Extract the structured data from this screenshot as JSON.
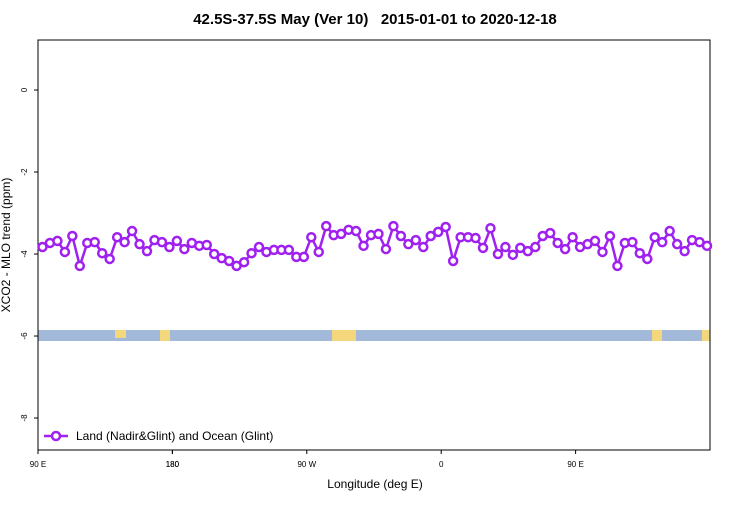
{
  "chart_data": {
    "type": "line",
    "title": "42.5S-37.5S May (Ver 10)   2015-01-01 to 2020-12-18",
    "x_label": "Longitude (deg E)",
    "y_label": "XCO2 - MLO trend (ppm)",
    "xlim": [
      90,
      540
    ],
    "xticks": [
      {
        "value": 90,
        "label": "90 E"
      },
      180,
      {
        "value": 270,
        "label": "90 W"
      },
      {
        "value": 360,
        "label": "0"
      },
      {
        "value": 450,
        "label": "90 E"
      },
      180
    ],
    "ylim": [
      -8.78,
      1.22
    ],
    "yticks": [
      0,
      -2,
      -4,
      -6,
      -8
    ],
    "legend": "bottom-left",
    "series": [
      {
        "name": "Land (Nadir&Glint) and Ocean (Glint)",
        "color": "#a020f0",
        "x": [
          93,
          98,
          103,
          108,
          113,
          118,
          123,
          128,
          133,
          138,
          143,
          148,
          153,
          158,
          163,
          168,
          173,
          178,
          183,
          188,
          193,
          198,
          203,
          208,
          213,
          218,
          223,
          228,
          233,
          238,
          243,
          248,
          253,
          258,
          263,
          268,
          273,
          278,
          283,
          288,
          293,
          298,
          303,
          308,
          313,
          318,
          323,
          328,
          333,
          338,
          343,
          348,
          353,
          358,
          363,
          368,
          373,
          378,
          383,
          388,
          393,
          398,
          403,
          408,
          413,
          418,
          423,
          428,
          433,
          438,
          443,
          448,
          453,
          458,
          463,
          468,
          473,
          478,
          483,
          488,
          493,
          498,
          503,
          508,
          513,
          518,
          523,
          528,
          533,
          538
        ],
        "values": [
          -3.83,
          -3.73,
          -3.68,
          -3.95,
          -3.56,
          -4.29,
          -3.73,
          -3.71,
          -3.98,
          -4.12,
          -3.59,
          -3.71,
          -3.44,
          -3.76,
          -3.93,
          -3.66,
          -3.71,
          -3.83,
          -3.68,
          -3.88,
          -3.73,
          -3.8,
          -3.78,
          -4.0,
          -4.1,
          -4.17,
          -4.29,
          -4.2,
          -3.98,
          -3.83,
          -3.95,
          -3.9,
          -3.9,
          -3.9,
          -4.07,
          -4.07,
          -3.59,
          -3.95,
          -3.32,
          -3.54,
          -3.51,
          -3.41,
          -3.44,
          -3.8,
          -3.54,
          -3.51,
          -3.88,
          -3.32,
          -3.56,
          -3.76,
          -3.66,
          -3.83,
          -3.56,
          -3.46,
          -3.34,
          -4.17,
          -3.59,
          -3.59,
          -3.61,
          -3.85,
          -3.37,
          -4.0,
          -3.83,
          -4.02,
          -3.85,
          -3.93,
          -3.83,
          -3.56,
          -3.49,
          -3.73,
          -3.88,
          -3.59,
          -3.83,
          -3.76,
          -3.68,
          -3.95,
          -3.56,
          -4.29,
          -3.73,
          -3.71,
          -3.98,
          -4.12,
          -3.59,
          -3.71,
          -3.44,
          -3.76,
          -3.93,
          -3.66,
          -3.71,
          -3.8
        ]
      }
    ]
  }
}
